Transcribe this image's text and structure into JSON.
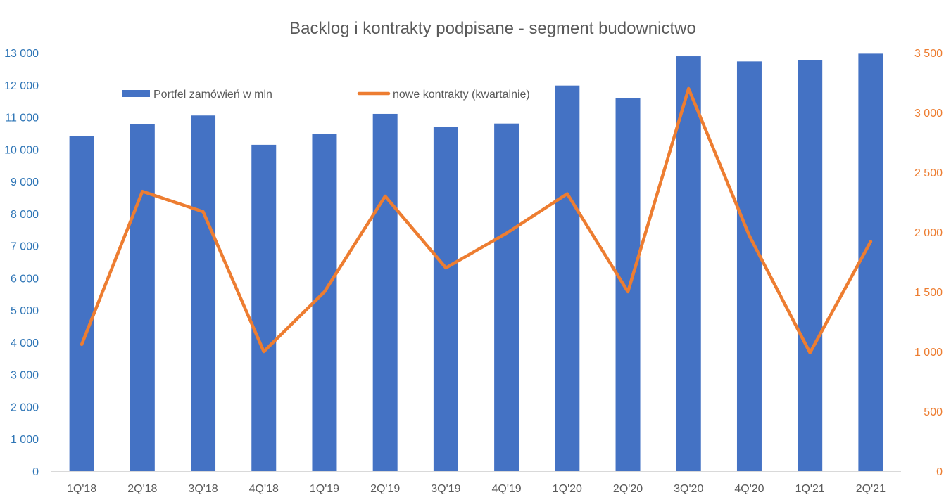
{
  "chart_data": {
    "type": "bar",
    "title": "Backlog i kontrakty podpisane - segment budownictwo",
    "categories": [
      "1Q'18",
      "2Q'18",
      "3Q'18",
      "4Q'18",
      "1Q'19",
      "2Q'19",
      "3Q'19",
      "4Q'19",
      "1Q'20",
      "2Q'20",
      "3Q'20",
      "4Q'20",
      "1Q'21",
      "2Q'21"
    ],
    "series": [
      {
        "name": "Portfel zamówień w mln",
        "type": "bar",
        "axis": "left",
        "color": "#4472C4",
        "values": [
          10420,
          10790,
          11050,
          10140,
          10480,
          11100,
          10700,
          10800,
          11980,
          11580,
          12890,
          12730,
          12760,
          12970
        ]
      },
      {
        "name": "nowe kontrakty (kwartalnie)",
        "type": "line",
        "axis": "right",
        "color": "#ED7D31",
        "values": [
          1060,
          2340,
          2170,
          1000,
          1500,
          2300,
          1700,
          1990,
          2320,
          1500,
          3200,
          1970,
          990,
          1920
        ]
      }
    ],
    "y_left": {
      "min": 0,
      "max": 13000,
      "step": 1000,
      "tick_labels": [
        "0",
        "1 000",
        "2 000",
        "3 000",
        "4 000",
        "5 000",
        "6 000",
        "7 000",
        "8 000",
        "9 000",
        "10 000",
        "11 000",
        "12 000",
        "13 000"
      ],
      "color": "#2E75B6"
    },
    "y_right": {
      "min": 0,
      "max": 3500,
      "step": 500,
      "tick_labels": [
        "0",
        "500",
        "1 000",
        "1 500",
        "2 000",
        "2 500",
        "3 000",
        "3 500"
      ],
      "color": "#ED7D31"
    },
    "grid": false,
    "legend_position": "top-left-inside"
  }
}
